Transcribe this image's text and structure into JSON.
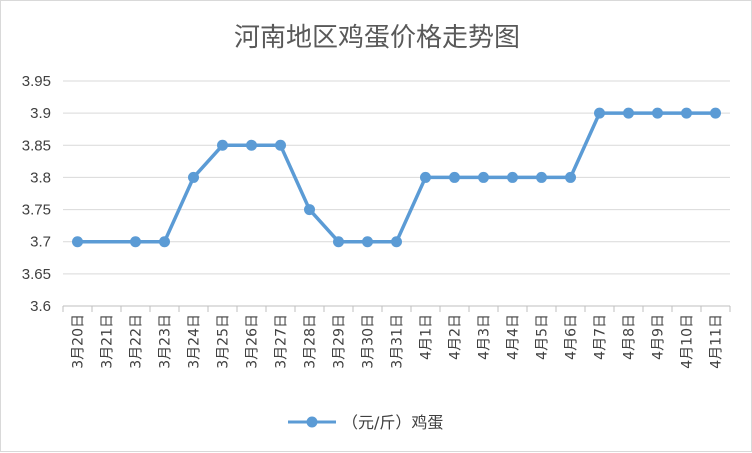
{
  "chart_data": {
    "type": "line",
    "title": "河南地区鸡蛋价格走势图",
    "xlabel": "",
    "ylabel": "",
    "categories": [
      "3月20日",
      "3月21日",
      "3月22日",
      "3月23日",
      "3月24日",
      "3月25日",
      "3月26日",
      "3月27日",
      "3月28日",
      "3月29日",
      "3月30日",
      "3月31日",
      "4月1日",
      "4月2日",
      "4月3日",
      "4月4日",
      "4月5日",
      "4月6日",
      "4月7日",
      "4月8日",
      "4月9日",
      "4月10日",
      "4月11日"
    ],
    "series": [
      {
        "name": "（元/斤）鸡蛋",
        "color": "#5b9bd5",
        "values": [
          3.7,
          null,
          3.7,
          3.7,
          3.8,
          3.85,
          3.85,
          3.85,
          3.75,
          3.7,
          3.7,
          3.7,
          3.8,
          3.8,
          3.8,
          3.8,
          3.8,
          3.8,
          3.9,
          3.9,
          3.9,
          3.9,
          3.9
        ]
      }
    ],
    "ylim": [
      3.6,
      3.95
    ],
    "yticks": [
      "3.6",
      "3.65",
      "3.7",
      "3.75",
      "3.8",
      "3.85",
      "3.9",
      "3.95"
    ],
    "grid": true,
    "legend": "bottom"
  }
}
